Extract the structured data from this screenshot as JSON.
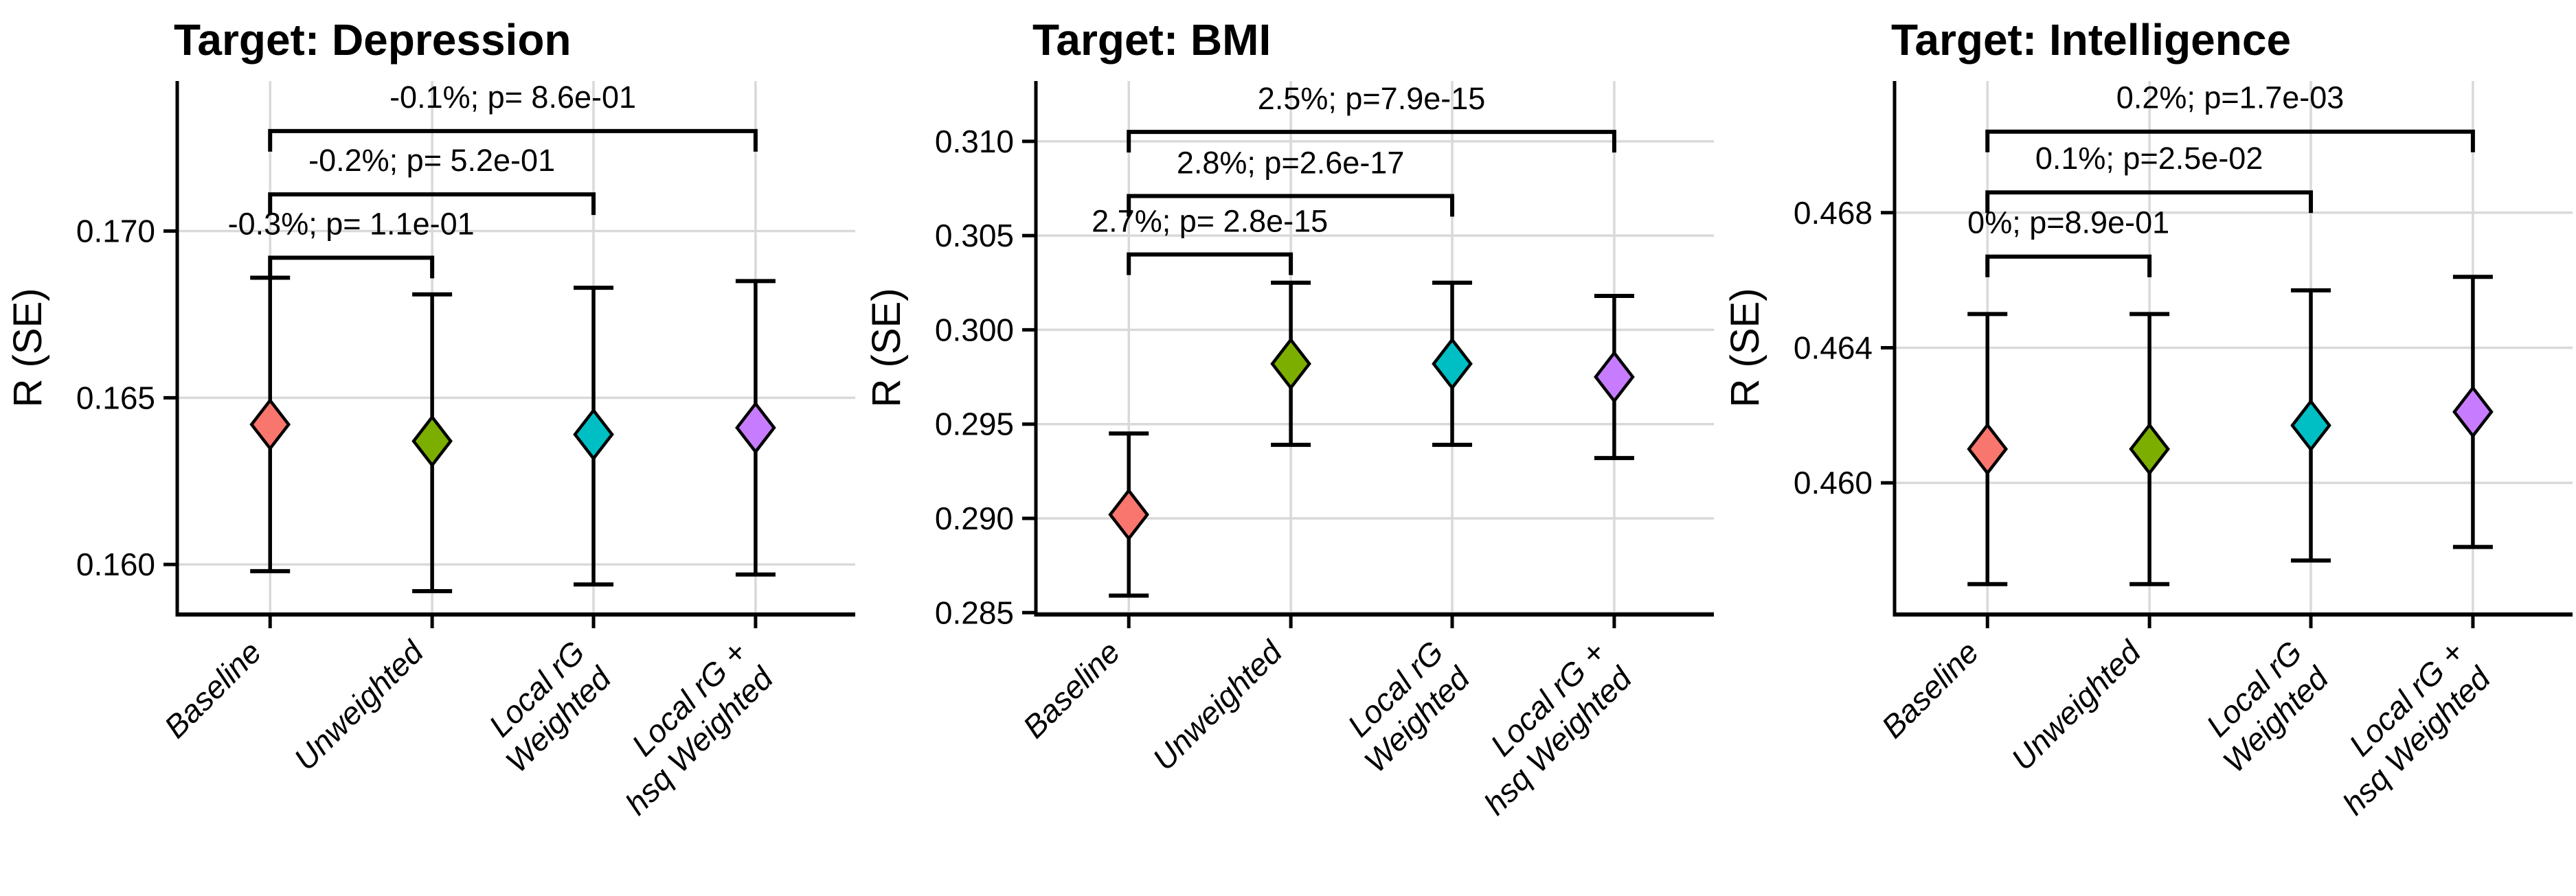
{
  "figure": {
    "background": "#FFFFFF",
    "text_color": "#000000",
    "grid_color": "#D9D9D9",
    "axis_color": "#000000",
    "ylabel": "R (SE)",
    "point_colors": [
      "#F8766D",
      "#7CAE00",
      "#00BFC4",
      "#C77CFF"
    ],
    "category_label_lines": [
      [
        "Baseline"
      ],
      [
        "Unweighted"
      ],
      [
        "Local rG",
        "Weighted"
      ],
      [
        "Local rG +",
        "hsq Weighted"
      ]
    ]
  },
  "chart_data": [
    {
      "type": "scatter",
      "subtype": "point-errorbar",
      "title": "Target: Depression",
      "xlabel": "",
      "ylabel": "R (SE)",
      "grid": true,
      "legend": "none",
      "categories": [
        "Baseline",
        "Unweighted",
        "Local rG Weighted",
        "Local rG + hsq Weighted"
      ],
      "ylim": [
        0.1585,
        0.1745
      ],
      "yticks": [
        {
          "v": 0.16,
          "label": "0.160"
        },
        {
          "v": 0.165,
          "label": "0.165"
        },
        {
          "v": 0.17,
          "label": "0.170"
        }
      ],
      "points": [
        {
          "category": "Baseline",
          "mean": 0.1642,
          "upper": 0.1686,
          "lower": 0.1598,
          "color": "#F8766D"
        },
        {
          "category": "Unweighted",
          "mean": 0.1637,
          "upper": 0.1681,
          "lower": 0.1592,
          "color": "#7CAE00"
        },
        {
          "category": "Local rG Weighted",
          "mean": 0.1639,
          "upper": 0.1683,
          "lower": 0.1594,
          "color": "#00BFC4"
        },
        {
          "category": "Local rG + hsq Weighted",
          "mean": 0.1641,
          "upper": 0.1685,
          "lower": 0.1597,
          "color": "#C77CFF"
        }
      ],
      "comparisons": [
        {
          "from": 0,
          "to": 1,
          "bar_y": 0.1692,
          "text_y": 0.1699,
          "label": "-0.3%; p= 1.1e-01"
        },
        {
          "from": 0,
          "to": 2,
          "bar_y": 0.1711,
          "text_y": 0.1718,
          "label": "-0.2%; p= 5.2e-01"
        },
        {
          "from": 0,
          "to": 3,
          "bar_y": 0.173,
          "text_y": 0.1737,
          "label": "-0.1%; p= 8.6e-01"
        }
      ]
    },
    {
      "type": "scatter",
      "subtype": "point-errorbar",
      "title": "Target: BMI",
      "xlabel": "",
      "ylabel": "R (SE)",
      "grid": true,
      "legend": "none",
      "categories": [
        "Baseline",
        "Unweighted",
        "Local rG Weighted",
        "Local rG + hsq Weighted"
      ],
      "ylim": [
        0.2849,
        0.3132
      ],
      "yticks": [
        {
          "v": 0.285,
          "label": "0.285"
        },
        {
          "v": 0.29,
          "label": "0.290"
        },
        {
          "v": 0.295,
          "label": "0.295"
        },
        {
          "v": 0.3,
          "label": "0.300"
        },
        {
          "v": 0.305,
          "label": "0.305"
        },
        {
          "v": 0.31,
          "label": "0.310"
        }
      ],
      "points": [
        {
          "category": "Baseline",
          "mean": 0.2902,
          "upper": 0.2945,
          "lower": 0.2859,
          "color": "#F8766D"
        },
        {
          "category": "Unweighted",
          "mean": 0.2982,
          "upper": 0.3025,
          "lower": 0.2939,
          "color": "#7CAE00"
        },
        {
          "category": "Local rG Weighted",
          "mean": 0.2982,
          "upper": 0.3025,
          "lower": 0.2939,
          "color": "#00BFC4"
        },
        {
          "category": "Local rG + hsq Weighted",
          "mean": 0.2975,
          "upper": 0.3018,
          "lower": 0.2932,
          "color": "#C77CFF"
        }
      ],
      "comparisons": [
        {
          "from": 0,
          "to": 1,
          "bar_y": 0.304,
          "text_y": 0.3052,
          "label": "2.7%; p= 2.8e-15"
        },
        {
          "from": 0,
          "to": 2,
          "bar_y": 0.3071,
          "text_y": 0.3083,
          "label": "2.8%; p=2.6e-17"
        },
        {
          "from": 0,
          "to": 3,
          "bar_y": 0.3105,
          "text_y": 0.3117,
          "label": "2.5%; p=7.9e-15"
        }
      ]
    },
    {
      "type": "scatter",
      "subtype": "point-errorbar",
      "title": "Target: Intelligence",
      "xlabel": "",
      "ylabel": "R (SE)",
      "grid": true,
      "legend": "none",
      "categories": [
        "Baseline",
        "Unweighted",
        "Local rG Weighted",
        "Local rG + hsq Weighted"
      ],
      "ylim": [
        0.4561,
        0.4719
      ],
      "yticks": [
        {
          "v": 0.46,
          "label": "0.460"
        },
        {
          "v": 0.464,
          "label": "0.464"
        },
        {
          "v": 0.468,
          "label": "0.468"
        }
      ],
      "points": [
        {
          "category": "Baseline",
          "mean": 0.461,
          "upper": 0.465,
          "lower": 0.457,
          "color": "#F8766D"
        },
        {
          "category": "Unweighted",
          "mean": 0.461,
          "upper": 0.465,
          "lower": 0.457,
          "color": "#7CAE00"
        },
        {
          "category": "Local rG Weighted",
          "mean": 0.4617,
          "upper": 0.4657,
          "lower": 0.4577,
          "color": "#00BFC4"
        },
        {
          "category": "Local rG + hsq Weighted",
          "mean": 0.4621,
          "upper": 0.4661,
          "lower": 0.4581,
          "color": "#C77CFF"
        }
      ],
      "comparisons": [
        {
          "from": 0,
          "to": 1,
          "bar_y": 0.4667,
          "text_y": 0.4674,
          "label": "0%; p=8.9e-01"
        },
        {
          "from": 0,
          "to": 2,
          "bar_y": 0.4686,
          "text_y": 0.4693,
          "label": "0.1%; p=2.5e-02"
        },
        {
          "from": 0,
          "to": 3,
          "bar_y": 0.4704,
          "text_y": 0.4711,
          "label": "0.2%; p=1.7e-03"
        }
      ]
    }
  ]
}
